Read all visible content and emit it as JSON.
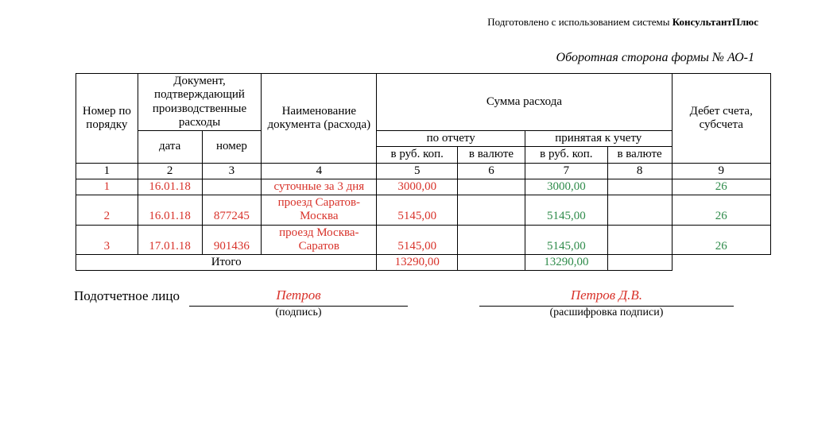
{
  "header_note_prefix": "Подготовлено с использованием системы ",
  "header_note_bold": "КонсультантПлюс",
  "form_title": "Оборотная сторона формы № АО-1",
  "col_widths": {
    "num": 75,
    "date": 78,
    "docnum": 72,
    "name": 140,
    "rep_rub": 98,
    "rep_val": 82,
    "acc_rub": 100,
    "acc_val": 78,
    "debit": 120
  },
  "headers": {
    "num": "Номер по порядку",
    "doc_group": "Документ, подтверждающий производственные расходы",
    "date": "дата",
    "docnum": "номер",
    "name": "Наименование документа (расхода)",
    "sum_group": "Сумма расхода",
    "report": "по отчету",
    "accepted": "принятая к учету",
    "rub": "в руб. коп.",
    "val": "в валюте",
    "debit": "Дебет счета, субсчета"
  },
  "index_row": [
    "1",
    "2",
    "3",
    "4",
    "5",
    "6",
    "7",
    "8",
    "9"
  ],
  "rows": [
    {
      "num": "1",
      "date": "16.01.18",
      "docnum": "",
      "name": "суточные за 3 дня",
      "rep_rub": "3000,00",
      "rep_val": "",
      "acc_rub": "3000,00",
      "acc_val": "",
      "debit": "26"
    },
    {
      "num": "2",
      "date": "16.01.18",
      "docnum": "877245",
      "name": "проезд Саратов-Москва",
      "rep_rub": "5145,00",
      "rep_val": "",
      "acc_rub": "5145,00",
      "acc_val": "",
      "debit": "26"
    },
    {
      "num": "3",
      "date": "17.01.18",
      "docnum": "901436",
      "name": "проезд Москва-Саратов",
      "rep_rub": "5145,00",
      "rep_val": "",
      "acc_rub": "5145,00",
      "acc_val": "",
      "debit": "26"
    }
  ],
  "total_label": "Итого",
  "total_rep_rub": "13290,00",
  "total_acc_rub": "13290,00",
  "signature": {
    "label": "Подотчетное лицо",
    "sign_value": "Петров",
    "sign_caption": "(подпись)",
    "decode_value": "Петров Д.В.",
    "decode_caption": "(расшифровка подписи)"
  },
  "colors": {
    "red": "#d8322a",
    "green": "#2e8b4a",
    "text": "#000000",
    "bg": "#ffffff"
  }
}
